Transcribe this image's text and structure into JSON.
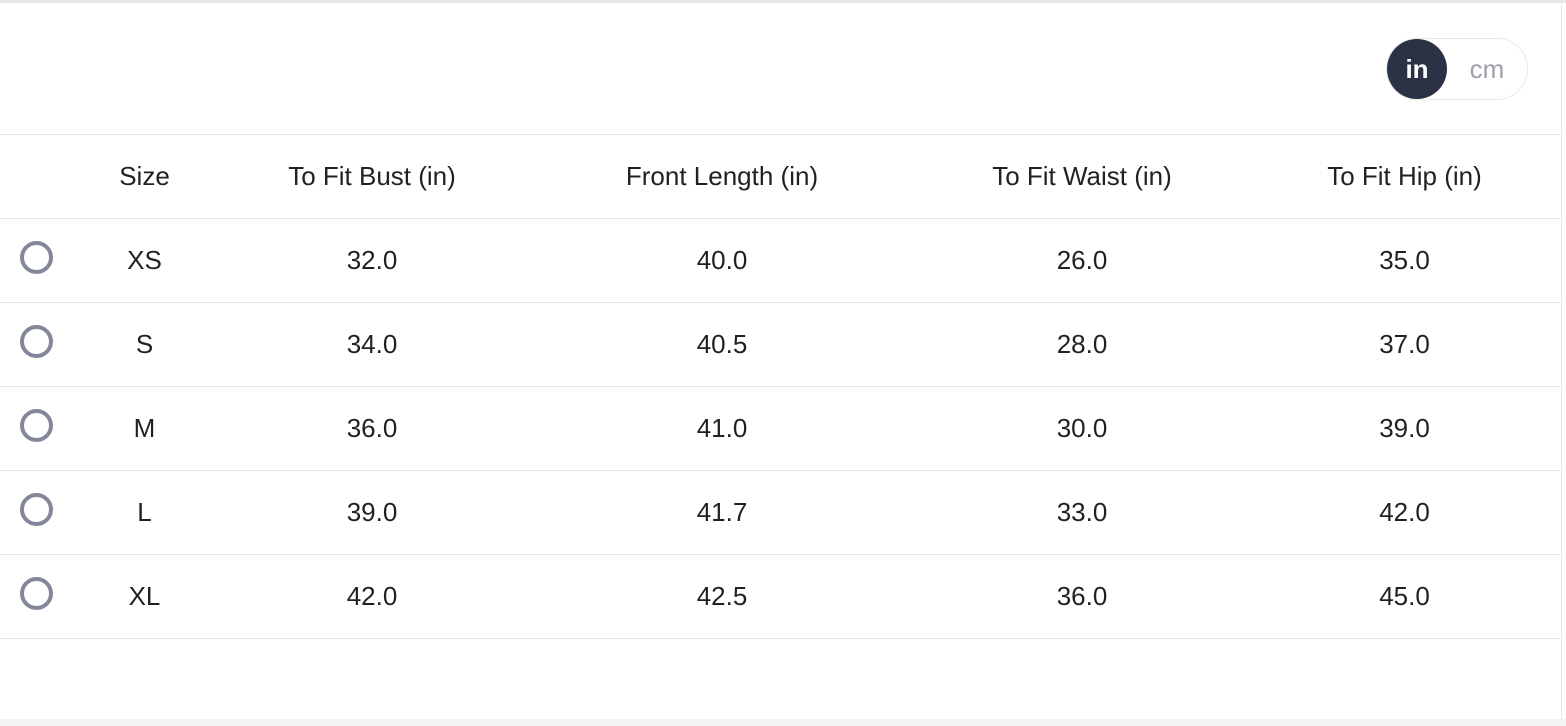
{
  "unit_toggle": {
    "selected": "in",
    "options": [
      {
        "label": "in"
      },
      {
        "label": "cm"
      }
    ]
  },
  "size_chart": {
    "columns": [
      {
        "key": "size",
        "label": "Size"
      },
      {
        "key": "bust",
        "label": "To Fit Bust (in)"
      },
      {
        "key": "front_length",
        "label": "Front Length (in)"
      },
      {
        "key": "waist",
        "label": "To Fit Waist (in)"
      },
      {
        "key": "hip",
        "label": "To Fit Hip (in)"
      }
    ],
    "rows": [
      {
        "size": "XS",
        "bust": "32.0",
        "front_length": "40.0",
        "waist": "26.0",
        "hip": "35.0",
        "selected": false
      },
      {
        "size": "S",
        "bust": "34.0",
        "front_length": "40.5",
        "waist": "28.0",
        "hip": "37.0",
        "selected": false
      },
      {
        "size": "M",
        "bust": "36.0",
        "front_length": "41.0",
        "waist": "30.0",
        "hip": "39.0",
        "selected": false
      },
      {
        "size": "L",
        "bust": "39.0",
        "front_length": "41.7",
        "waist": "33.0",
        "hip": "42.0",
        "selected": false
      },
      {
        "size": "XL",
        "bust": "42.0",
        "front_length": "42.5",
        "waist": "36.0",
        "hip": "45.0",
        "selected": false
      }
    ]
  },
  "colors": {
    "accent_dark": "#2b3245",
    "border": "#e7e7e7",
    "muted_text": "#9ca1a8",
    "text": "#1f2125",
    "radio_border": "#82879a",
    "bottom_strip": "#f4f4f4"
  }
}
